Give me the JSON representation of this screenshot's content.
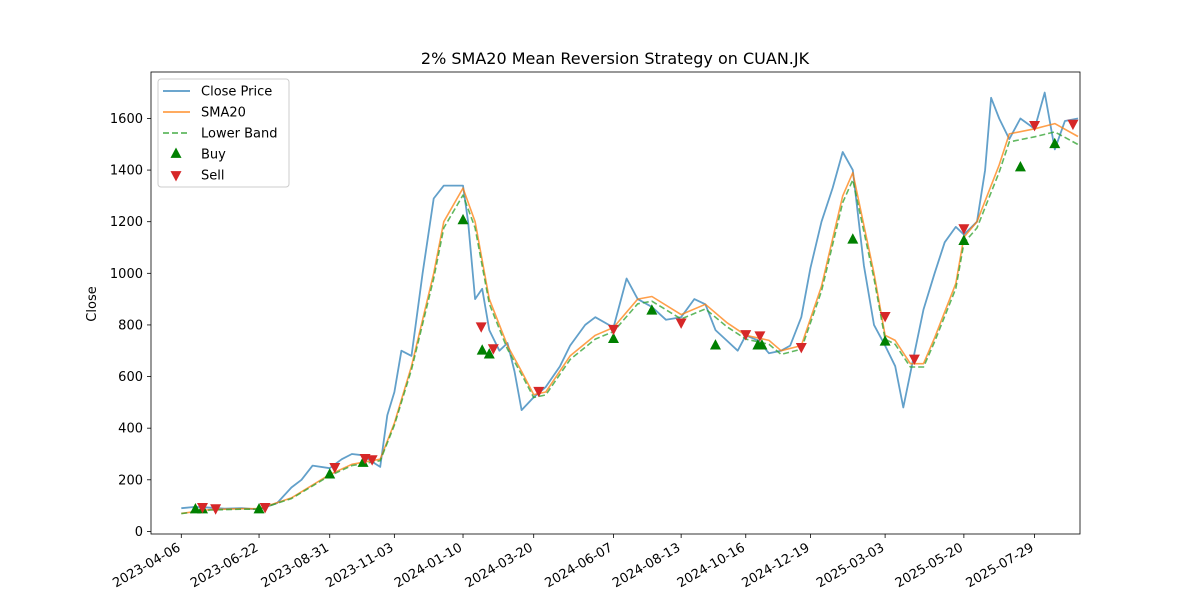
{
  "chart_data": {
    "type": "line",
    "title": "2% SMA20 Mean Reversion Strategy on CUAN.JK",
    "xlabel": "",
    "ylabel": "Close",
    "x_range": [
      "2023-03-07",
      "2025-09-12"
    ],
    "ylim": [
      -10,
      1780
    ],
    "y_ticks": [
      0,
      200,
      400,
      600,
      800,
      1000,
      1200,
      1400,
      1600
    ],
    "x_ticks": [
      "2023-04-06",
      "2023-06-22",
      "2023-08-31",
      "2023-11-03",
      "2024-01-10",
      "2024-03-20",
      "2024-06-07",
      "2024-08-13",
      "2024-10-16",
      "2024-12-19",
      "2025-03-03",
      "2025-05-20",
      "2025-07-29"
    ],
    "grid": false,
    "legend_position": "top-left",
    "series": [
      {
        "name": "Close Price",
        "color": "#1f77b4",
        "style": "solid",
        "points": [
          [
            "2023-04-06",
            90
          ],
          [
            "2023-04-20",
            95
          ],
          [
            "2023-05-05",
            92
          ],
          [
            "2023-05-19",
            88
          ],
          [
            "2023-06-05",
            90
          ],
          [
            "2023-06-22",
            85
          ],
          [
            "2023-07-10",
            110
          ],
          [
            "2023-07-24",
            170
          ],
          [
            "2023-08-03",
            200
          ],
          [
            "2023-08-14",
            255
          ],
          [
            "2023-08-31",
            245
          ],
          [
            "2023-09-12",
            280
          ],
          [
            "2023-09-22",
            300
          ],
          [
            "2023-10-03",
            295
          ],
          [
            "2023-10-12",
            270
          ],
          [
            "2023-10-20",
            250
          ],
          [
            "2023-10-27",
            450
          ],
          [
            "2023-11-03",
            540
          ],
          [
            "2023-11-10",
            700
          ],
          [
            "2023-11-20",
            680
          ],
          [
            "2023-12-01",
            1000
          ],
          [
            "2023-12-12",
            1290
          ],
          [
            "2023-12-22",
            1340
          ],
          [
            "2024-01-05",
            1340
          ],
          [
            "2024-01-10",
            1340
          ],
          [
            "2024-01-15",
            1200
          ],
          [
            "2024-01-22",
            900
          ],
          [
            "2024-01-29",
            940
          ],
          [
            "2024-02-05",
            780
          ],
          [
            "2024-02-15",
            700
          ],
          [
            "2024-02-23",
            730
          ],
          [
            "2024-03-01",
            620
          ],
          [
            "2024-03-08",
            470
          ],
          [
            "2024-03-20",
            520
          ],
          [
            "2024-04-01",
            560
          ],
          [
            "2024-04-15",
            640
          ],
          [
            "2024-04-25",
            720
          ],
          [
            "2024-05-10",
            800
          ],
          [
            "2024-05-20",
            830
          ],
          [
            "2024-06-07",
            790
          ],
          [
            "2024-06-20",
            980
          ],
          [
            "2024-07-01",
            900
          ],
          [
            "2024-07-15",
            870
          ],
          [
            "2024-07-29",
            820
          ],
          [
            "2024-08-13",
            830
          ],
          [
            "2024-08-26",
            900
          ],
          [
            "2024-09-06",
            880
          ],
          [
            "2024-09-16",
            780
          ],
          [
            "2024-09-27",
            740
          ],
          [
            "2024-10-08",
            700
          ],
          [
            "2024-10-16",
            760
          ],
          [
            "2024-10-28",
            740
          ],
          [
            "2024-11-08",
            690
          ],
          [
            "2024-11-20",
            700
          ],
          [
            "2024-11-29",
            720
          ],
          [
            "2024-12-10",
            830
          ],
          [
            "2024-12-19",
            1020
          ],
          [
            "2024-12-30",
            1200
          ],
          [
            "2025-01-10",
            1330
          ],
          [
            "2025-01-20",
            1470
          ],
          [
            "2025-01-30",
            1400
          ],
          [
            "2025-02-10",
            1030
          ],
          [
            "2025-02-20",
            800
          ],
          [
            "2025-03-03",
            720
          ],
          [
            "2025-03-13",
            640
          ],
          [
            "2025-03-21",
            480
          ],
          [
            "2025-04-01",
            690
          ],
          [
            "2025-04-10",
            860
          ],
          [
            "2025-04-21",
            1000
          ],
          [
            "2025-05-01",
            1120
          ],
          [
            "2025-05-12",
            1180
          ],
          [
            "2025-05-20",
            1150
          ],
          [
            "2025-06-02",
            1200
          ],
          [
            "2025-06-10",
            1400
          ],
          [
            "2025-06-16",
            1680
          ],
          [
            "2025-06-24",
            1600
          ],
          [
            "2025-07-04",
            1520
          ],
          [
            "2025-07-15",
            1600
          ],
          [
            "2025-07-29",
            1560
          ],
          [
            "2025-08-08",
            1700
          ],
          [
            "2025-08-18",
            1480
          ],
          [
            "2025-08-28",
            1590
          ],
          [
            "2025-09-10",
            1600
          ]
        ]
      },
      {
        "name": "SMA20",
        "color": "#ff7f0e",
        "style": "solid",
        "points": [
          [
            "2023-04-06",
            70
          ],
          [
            "2023-05-05",
            85
          ],
          [
            "2023-06-05",
            88
          ],
          [
            "2023-06-22",
            88
          ],
          [
            "2023-07-24",
            130
          ],
          [
            "2023-08-31",
            220
          ],
          [
            "2023-09-22",
            260
          ],
          [
            "2023-10-20",
            280
          ],
          [
            "2023-11-03",
            420
          ],
          [
            "2023-11-20",
            640
          ],
          [
            "2023-12-12",
            1000
          ],
          [
            "2023-12-22",
            1200
          ],
          [
            "2024-01-10",
            1330
          ],
          [
            "2024-01-22",
            1200
          ],
          [
            "2024-02-05",
            900
          ],
          [
            "2024-02-23",
            720
          ],
          [
            "2024-03-08",
            620
          ],
          [
            "2024-03-20",
            530
          ],
          [
            "2024-04-01",
            540
          ],
          [
            "2024-04-25",
            680
          ],
          [
            "2024-05-20",
            760
          ],
          [
            "2024-06-07",
            790
          ],
          [
            "2024-07-01",
            900
          ],
          [
            "2024-07-15",
            910
          ],
          [
            "2024-08-13",
            840
          ],
          [
            "2024-09-06",
            880
          ],
          [
            "2024-09-27",
            810
          ],
          [
            "2024-10-16",
            760
          ],
          [
            "2024-11-08",
            740
          ],
          [
            "2024-11-20",
            700
          ],
          [
            "2024-12-10",
            720
          ],
          [
            "2024-12-30",
            950
          ],
          [
            "2025-01-20",
            1300
          ],
          [
            "2025-01-30",
            1390
          ],
          [
            "2025-02-20",
            1000
          ],
          [
            "2025-03-03",
            760
          ],
          [
            "2025-03-13",
            740
          ],
          [
            "2025-03-28",
            650
          ],
          [
            "2025-04-10",
            650
          ],
          [
            "2025-04-21",
            750
          ],
          [
            "2025-05-12",
            960
          ],
          [
            "2025-05-20",
            1140
          ],
          [
            "2025-06-02",
            1200
          ],
          [
            "2025-06-24",
            1420
          ],
          [
            "2025-07-04",
            1540
          ],
          [
            "2025-07-29",
            1560
          ],
          [
            "2025-08-18",
            1580
          ],
          [
            "2025-09-10",
            1530
          ]
        ]
      },
      {
        "name": "Lower Band",
        "color": "#2ca02c",
        "style": "dashed",
        "points": [
          [
            "2023-04-06",
            69
          ],
          [
            "2023-05-05",
            83
          ],
          [
            "2023-06-05",
            86
          ],
          [
            "2023-06-22",
            86
          ],
          [
            "2023-07-24",
            127
          ],
          [
            "2023-08-31",
            216
          ],
          [
            "2023-09-22",
            255
          ],
          [
            "2023-10-20",
            274
          ],
          [
            "2023-11-03",
            412
          ],
          [
            "2023-11-20",
            627
          ],
          [
            "2023-12-12",
            980
          ],
          [
            "2023-12-22",
            1176
          ],
          [
            "2024-01-10",
            1303
          ],
          [
            "2024-01-22",
            1176
          ],
          [
            "2024-02-05",
            882
          ],
          [
            "2024-02-23",
            706
          ],
          [
            "2024-03-08",
            608
          ],
          [
            "2024-03-20",
            519
          ],
          [
            "2024-04-01",
            529
          ],
          [
            "2024-04-25",
            666
          ],
          [
            "2024-05-20",
            745
          ],
          [
            "2024-06-07",
            774
          ],
          [
            "2024-07-01",
            882
          ],
          [
            "2024-07-15",
            892
          ],
          [
            "2024-08-13",
            823
          ],
          [
            "2024-09-06",
            862
          ],
          [
            "2024-09-27",
            794
          ],
          [
            "2024-10-16",
            745
          ],
          [
            "2024-11-08",
            725
          ],
          [
            "2024-11-20",
            686
          ],
          [
            "2024-12-10",
            706
          ],
          [
            "2024-12-30",
            931
          ],
          [
            "2025-01-20",
            1274
          ],
          [
            "2025-01-30",
            1362
          ],
          [
            "2025-02-20",
            980
          ],
          [
            "2025-03-03",
            745
          ],
          [
            "2025-03-13",
            725
          ],
          [
            "2025-03-28",
            637
          ],
          [
            "2025-04-10",
            637
          ],
          [
            "2025-04-21",
            735
          ],
          [
            "2025-05-12",
            941
          ],
          [
            "2025-05-20",
            1117
          ],
          [
            "2025-06-02",
            1176
          ],
          [
            "2025-06-24",
            1392
          ],
          [
            "2025-07-04",
            1509
          ],
          [
            "2025-07-29",
            1529
          ],
          [
            "2025-08-18",
            1548
          ],
          [
            "2025-09-10",
            1499
          ]
        ]
      },
      {
        "name": "Buy",
        "color": "#008000",
        "marker": "triangle-up",
        "points": [
          [
            "2023-04-20",
            85
          ],
          [
            "2023-04-27",
            85
          ],
          [
            "2023-06-22",
            85
          ],
          [
            "2023-08-31",
            220
          ],
          [
            "2023-10-03",
            265
          ],
          [
            "2024-01-10",
            1205
          ],
          [
            "2024-01-29",
            700
          ],
          [
            "2024-02-05",
            685
          ],
          [
            "2024-06-07",
            745
          ],
          [
            "2024-07-15",
            855
          ],
          [
            "2024-09-16",
            720
          ],
          [
            "2024-10-28",
            720
          ],
          [
            "2024-11-01",
            720
          ],
          [
            "2025-01-30",
            1130
          ],
          [
            "2025-03-03",
            735
          ],
          [
            "2025-05-20",
            1125
          ],
          [
            "2025-07-15",
            1410
          ],
          [
            "2025-08-18",
            1500
          ]
        ]
      },
      {
        "name": "Sell",
        "color": "#d62728",
        "marker": "triangle-down",
        "points": [
          [
            "2023-04-27",
            95
          ],
          [
            "2023-05-10",
            90
          ],
          [
            "2023-06-28",
            95
          ],
          [
            "2023-09-05",
            250
          ],
          [
            "2023-10-05",
            285
          ],
          [
            "2023-10-12",
            280
          ],
          [
            "2024-01-28",
            795
          ],
          [
            "2024-02-09",
            710
          ],
          [
            "2024-03-25",
            545
          ],
          [
            "2024-06-07",
            785
          ],
          [
            "2024-08-13",
            810
          ],
          [
            "2024-10-16",
            765
          ],
          [
            "2024-10-30",
            760
          ],
          [
            "2024-12-10",
            715
          ],
          [
            "2025-03-03",
            835
          ],
          [
            "2025-04-01",
            670
          ],
          [
            "2025-05-20",
            1175
          ],
          [
            "2025-07-29",
            1575
          ],
          [
            "2025-09-05",
            1580
          ]
        ]
      }
    ]
  }
}
